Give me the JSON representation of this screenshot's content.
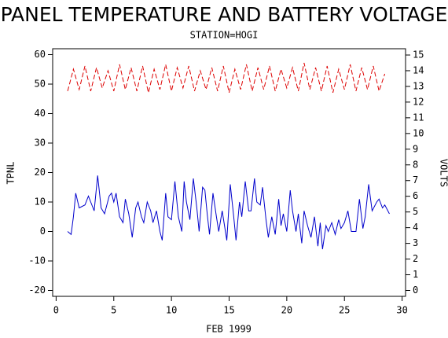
{
  "chart_data": {
    "type": "line",
    "title": "PANEL TEMPERATURE AND BATTERY VOLTAGE",
    "subtitle": "STATION=HOGI",
    "x_label": "FEB 1999",
    "y_label": "TPNL",
    "y2_label": "VOLTS",
    "xlim": [
      -0.3,
      30.3
    ],
    "xticks": [
      0,
      5,
      10,
      15,
      20,
      25,
      30
    ],
    "ylim": [
      -22,
      62
    ],
    "yticks": [
      -20,
      -10,
      0,
      10,
      20,
      30,
      40,
      50,
      60
    ],
    "y2lim": [
      -0.375,
      15.4
    ],
    "y2ticks": [
      0,
      1,
      2,
      3,
      4,
      5,
      6,
      7,
      8,
      9,
      10,
      11,
      12,
      13,
      14,
      15
    ],
    "series": [
      {
        "color": "#0000cc",
        "line_style": "solid",
        "x": [
          1.0,
          1.3,
          1.5,
          1.7,
          2.0,
          2.5,
          2.8,
          3.0,
          3.3,
          3.6,
          3.9,
          4.2,
          4.6,
          4.8,
          5.0,
          5.2,
          5.5,
          5.8,
          6.0,
          6.3,
          6.6,
          6.9,
          7.1,
          7.4,
          7.6,
          7.9,
          8.2,
          8.4,
          8.7,
          9.0,
          9.2,
          9.5,
          9.7,
          10.0,
          10.3,
          10.6,
          10.9,
          11.1,
          11.3,
          11.6,
          11.9,
          12.2,
          12.4,
          12.7,
          12.9,
          13.1,
          13.3,
          13.6,
          13.9,
          14.1,
          14.4,
          14.8,
          15.1,
          15.4,
          15.6,
          15.9,
          16.1,
          16.4,
          16.7,
          16.9,
          17.2,
          17.4,
          17.7,
          17.9,
          18.2,
          18.4,
          18.7,
          19.0,
          19.3,
          19.5,
          19.7,
          20.0,
          20.3,
          20.5,
          20.8,
          21.0,
          21.3,
          21.5,
          21.8,
          22.1,
          22.4,
          22.7,
          22.9,
          23.1,
          23.4,
          23.6,
          23.9,
          24.2,
          24.5,
          24.7,
          25.0,
          25.3,
          25.6,
          26.0,
          26.3,
          26.6,
          26.8,
          27.1,
          27.4,
          27.8,
          28.0,
          28.3,
          28.5,
          28.9
        ],
        "values": [
          0,
          -1,
          5,
          13,
          8,
          9,
          12,
          10,
          7,
          19,
          8,
          6,
          12,
          13,
          10,
          13,
          5,
          3,
          11,
          6,
          -2,
          8,
          10,
          5,
          3,
          10,
          7,
          3,
          7,
          0,
          -3,
          13,
          5,
          4,
          17,
          5,
          0,
          17,
          10,
          4,
          18,
          8,
          0,
          15,
          14,
          6,
          -1,
          13,
          5,
          0,
          7,
          -3,
          16,
          5,
          -3,
          10,
          5,
          17,
          7,
          7,
          18,
          10,
          9,
          15,
          4,
          -2,
          5,
          -1,
          11,
          2,
          6,
          0,
          14,
          7,
          0,
          6,
          -4,
          7,
          2,
          -2,
          5,
          -5,
          3,
          -6,
          2,
          0,
          3,
          -1,
          4,
          1,
          3,
          7,
          0,
          0,
          11,
          1,
          5,
          16,
          7,
          10,
          11,
          8,
          9,
          6
        ]
      },
      {
        "color": "#dd0000",
        "line_style": "dashed",
        "axis": "y2",
        "x": [
          1,
          1.5,
          2,
          2.5,
          3,
          3.5,
          4,
          4.5,
          5,
          5.5,
          6,
          6.5,
          7,
          7.5,
          8,
          8.5,
          9,
          9.5,
          10,
          10.5,
          11,
          11.5,
          12,
          12.5,
          13,
          13.5,
          14,
          14.5,
          15,
          15.5,
          16,
          16.5,
          17,
          17.5,
          18,
          18.5,
          19,
          19.5,
          20,
          20.5,
          21,
          21.5,
          22,
          22.5,
          23,
          23.5,
          24,
          24.5,
          25,
          25.5,
          26,
          26.5,
          27,
          27.5,
          28,
          28.5
        ],
        "values": [
          12.7,
          14.1,
          12.8,
          14.3,
          12.7,
          14.2,
          12.9,
          14.0,
          12.7,
          14.4,
          12.8,
          14.2,
          12.7,
          14.3,
          12.6,
          14.1,
          12.8,
          14.4,
          12.7,
          14.2,
          12.9,
          14.3,
          12.7,
          14.0,
          12.8,
          14.2,
          12.7,
          14.3,
          12.6,
          14.1,
          12.8,
          14.4,
          12.7,
          14.2,
          12.8,
          14.3,
          12.7,
          14.1,
          12.9,
          14.2,
          12.7,
          14.5,
          12.8,
          14.2,
          12.7,
          14.3,
          12.6,
          14.1,
          12.8,
          14.4,
          12.7,
          14.2,
          12.8,
          14.3,
          12.7,
          13.8
        ]
      }
    ]
  }
}
